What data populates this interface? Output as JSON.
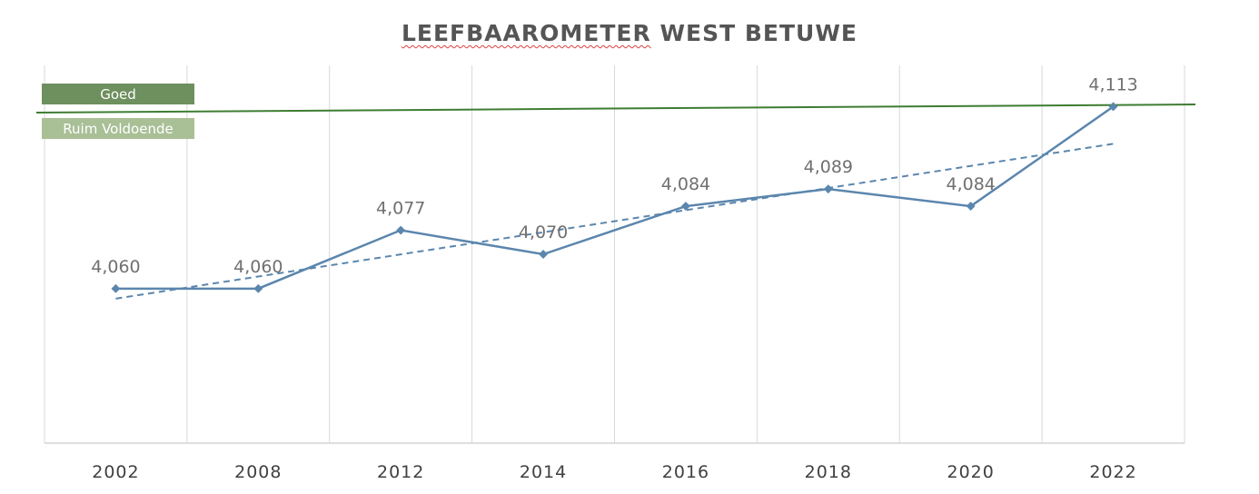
{
  "chart_data": {
    "type": "line",
    "title_part1": "LEEFBAAROMETER",
    "title_part2": "WEST BETUWE",
    "categories": [
      "2002",
      "2008",
      "2012",
      "2014",
      "2016",
      "2018",
      "2020",
      "2022"
    ],
    "series": [
      {
        "values": [
          4.06,
          4.06,
          4.077,
          4.07,
          4.084,
          4.089,
          4.084,
          4.113
        ],
        "labels": [
          "4,060",
          "4,060",
          "4,077",
          "4,070",
          "4,084",
          "4,089",
          "4,084",
          "4,113"
        ],
        "color": "#5b86ad"
      }
    ],
    "trendline": {
      "style": "dashed",
      "color": "#5b86ad"
    },
    "threshold": {
      "value": 4.11,
      "color": "#3e7d32",
      "label_above": "Goed",
      "label_below": "Ruim Voldoende",
      "label_above_color": "#6e8f5e",
      "label_below_color": "#a9bf96"
    },
    "ylim": [
      4.015,
      4.125
    ],
    "grid": "vertical"
  }
}
